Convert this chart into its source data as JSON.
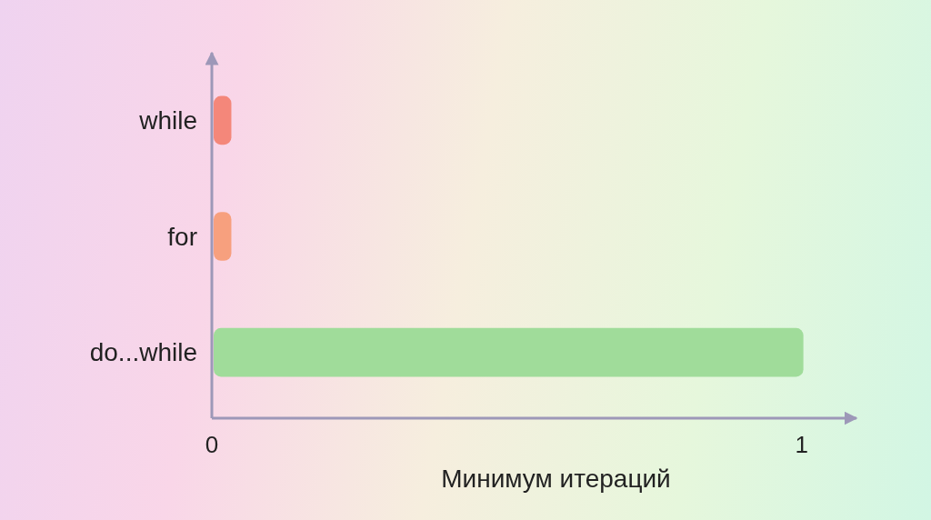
{
  "chart_data": {
    "type": "bar",
    "orientation": "horizontal",
    "xlabel": "Минимум итераций",
    "categories": [
      "while",
      "for",
      "do...while"
    ],
    "values": [
      0.03,
      0.03,
      1
    ],
    "colors": [
      "#f4877a",
      "#f7a07e",
      "#a0dc9a"
    ],
    "xlim": [
      0,
      1.09
    ],
    "xticks": [
      0,
      1
    ]
  }
}
